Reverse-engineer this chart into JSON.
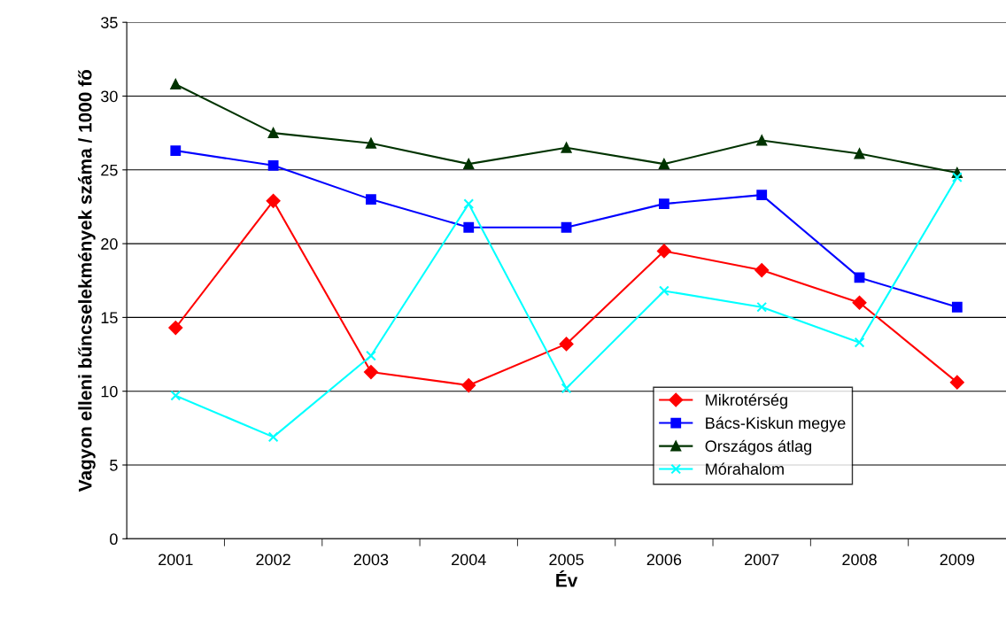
{
  "chart_data": {
    "type": "line",
    "xlabel": "Év",
    "ylabel": "Vagyon elleni bűncselekmények száma / 1000 fő",
    "categories": [
      "2001",
      "2002",
      "2003",
      "2004",
      "2005",
      "2006",
      "2007",
      "2008",
      "2009"
    ],
    "series": [
      {
        "name": "Mikrotérség",
        "color": "#ff0000",
        "marker": "diamond",
        "values": [
          14.3,
          22.9,
          11.3,
          10.4,
          13.2,
          19.5,
          18.2,
          16.0,
          10.6
        ]
      },
      {
        "name": "Bács-Kiskun megye",
        "color": "#0000ff",
        "marker": "square",
        "values": [
          26.3,
          25.3,
          23.0,
          21.1,
          21.1,
          22.7,
          23.3,
          17.7,
          15.7
        ]
      },
      {
        "name": "Országos átlag",
        "color": "#003300",
        "marker": "triangle",
        "values": [
          30.8,
          27.5,
          26.8,
          25.4,
          26.5,
          25.4,
          27.0,
          26.1,
          24.8
        ]
      },
      {
        "name": "Mórahalom",
        "color": "#00ffff",
        "marker": "cross",
        "values": [
          9.7,
          6.9,
          12.4,
          22.7,
          10.2,
          16.8,
          15.7,
          13.3,
          24.5
        ]
      }
    ],
    "ylim": [
      0,
      35
    ],
    "yticks": [
      0,
      5,
      10,
      15,
      20,
      25,
      30,
      35
    ],
    "grid": "y",
    "legend": "bottom right"
  }
}
